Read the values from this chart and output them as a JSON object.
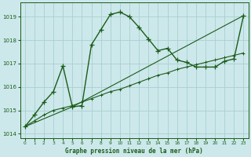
{
  "title": "Graphe pression niveau de la mer (hPa)",
  "bg_color": "#cde8ea",
  "grid_color": "#aacfd2",
  "line_color": "#1a5c1a",
  "xlim": [
    -0.5,
    23.5
  ],
  "ylim": [
    1013.8,
    1019.6
  ],
  "yticks": [
    1014,
    1015,
    1016,
    1017,
    1018,
    1019
  ],
  "xticks": [
    0,
    1,
    2,
    3,
    4,
    5,
    6,
    7,
    8,
    9,
    10,
    11,
    12,
    13,
    14,
    15,
    16,
    17,
    18,
    19,
    20,
    21,
    22,
    23
  ],
  "series1_x": [
    0,
    1,
    2,
    3,
    4,
    5,
    6,
    7,
    8,
    9,
    10,
    11,
    12,
    13,
    14,
    15,
    16,
    17,
    18,
    19,
    20,
    21,
    22,
    23
  ],
  "series1_y": [
    1014.3,
    1014.8,
    1015.35,
    1015.8,
    1016.9,
    1015.15,
    1015.2,
    1017.8,
    1018.45,
    1019.1,
    1019.2,
    1019.0,
    1018.55,
    1018.05,
    1017.55,
    1017.65,
    1017.15,
    1017.05,
    1016.85,
    1016.85,
    1016.85,
    1017.1,
    1017.2,
    1019.05
  ],
  "series2_x": [
    0,
    1,
    2,
    3,
    4,
    5,
    6,
    7,
    8,
    9,
    10,
    11,
    12,
    13,
    14,
    15,
    16,
    17,
    18,
    19,
    20,
    21,
    22,
    23
  ],
  "series2_y": [
    1014.3,
    1014.55,
    1014.8,
    1015.0,
    1015.1,
    1015.2,
    1015.35,
    1015.5,
    1015.65,
    1015.8,
    1015.9,
    1016.05,
    1016.2,
    1016.35,
    1016.5,
    1016.6,
    1016.75,
    1016.85,
    1016.95,
    1017.05,
    1017.15,
    1017.25,
    1017.35,
    1017.45
  ],
  "series3_x": [
    0,
    5,
    23
  ],
  "series3_y": [
    1014.3,
    1015.15,
    1019.05
  ]
}
